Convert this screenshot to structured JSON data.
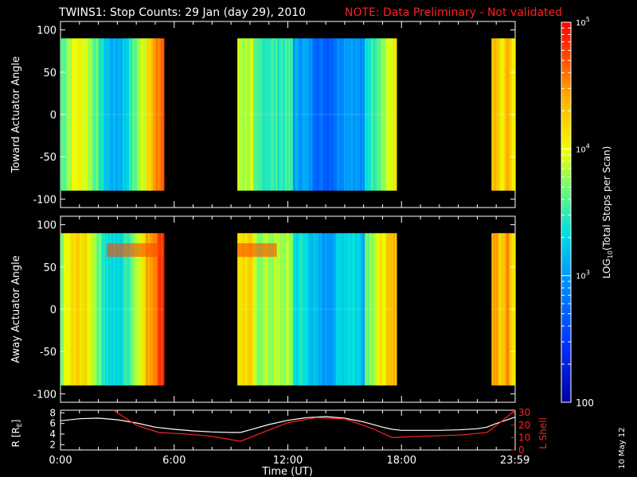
{
  "header": {
    "title": "TWINS1: Stop Counts: 29 Jan (day  29), 2010",
    "note": "NOTE: Data Preliminary - Not validated"
  },
  "stamp": "10 May 12",
  "colorbar": {
    "label": "LOG",
    "label_sub": "10",
    "label_rest": "(Total Stops per Scan)",
    "ticks": [
      {
        "value": 100000,
        "base": "10",
        "exp": "5"
      },
      {
        "value": 10000,
        "base": "10",
        "exp": "4"
      },
      {
        "value": 1000,
        "base": "10",
        "exp": "3"
      },
      {
        "value": 100,
        "base": "100",
        "exp": ""
      }
    ],
    "range": [
      100,
      100000
    ],
    "scale": "log"
  },
  "chart_data": [
    {
      "type": "heatmap",
      "ylabel": "Toward Actuator Angle",
      "ylim": [
        -110,
        110
      ],
      "yticks": [
        "100",
        "50",
        "0",
        "-50",
        "-100"
      ],
      "xlim": [
        0,
        24
      ],
      "angle_range": [
        -90,
        90
      ],
      "data_blocks": [
        {
          "start": "0:00",
          "end": "5:25",
          "level": "mixed: yellow-cyan, orange toward end"
        },
        {
          "start": "9:20",
          "end": "17:40",
          "level": "cyan-blue, yellow at edges"
        },
        {
          "start": "22:45",
          "end": "23:59",
          "level": "yellow-orange"
        }
      ]
    },
    {
      "type": "heatmap",
      "ylabel": "Away Actuator Angle",
      "ylim": [
        -110,
        110
      ],
      "yticks": [
        "100",
        "50",
        "0",
        "-50",
        "-100"
      ],
      "xlim": [
        0,
        24
      ],
      "angle_range": [
        -90,
        90
      ],
      "data_blocks": [
        {
          "start": "0:00",
          "end": "5:25",
          "level": "yellow-orange, red band near 70 deg"
        },
        {
          "start": "9:20",
          "end": "17:40",
          "level": "cyan-yellow, orange near 70 deg at start"
        },
        {
          "start": "22:45",
          "end": "23:59",
          "level": "orange"
        }
      ]
    },
    {
      "type": "line",
      "ylabel": "R [R",
      "ylabel_sub": "E",
      "ylabel_end": "]",
      "y2label": "L Shell",
      "xlabel": "Time (UT)",
      "xticks": [
        "0:00",
        "6:00",
        "12:00",
        "18:00",
        "23:59"
      ],
      "yticks": [
        "8",
        "6",
        "4",
        "2"
      ],
      "y2ticks": [
        "30",
        "20",
        "10",
        "0"
      ],
      "ylim": [
        1,
        8.5
      ],
      "y2lim": [
        0,
        32
      ],
      "series": [
        {
          "name": "R",
          "axis": "left",
          "x": [
            0,
            1,
            2,
            3,
            4,
            5,
            6,
            7,
            8,
            9,
            9.5,
            10,
            11,
            12,
            13,
            14,
            15,
            16,
            17,
            17.5,
            18,
            19,
            20,
            21,
            22,
            22.5,
            23,
            23.99
          ],
          "y": [
            6.5,
            6.9,
            7.0,
            6.7,
            6.1,
            5.3,
            4.9,
            4.6,
            4.4,
            4.3,
            4.3,
            4.8,
            5.8,
            6.6,
            7.1,
            7.3,
            7.0,
            6.3,
            5.3,
            4.9,
            4.7,
            4.7,
            4.7,
            4.8,
            5.0,
            5.3,
            6.0,
            7.2
          ]
        },
        {
          "name": "L Shell",
          "axis": "right",
          "x": [
            2.8,
            4.0,
            5.2,
            6.5,
            8.0,
            9.5,
            10.5,
            12.0,
            13.5,
            15.0,
            16.5,
            17.5,
            19.0,
            21.0,
            22.5,
            23.2,
            23.99
          ],
          "y": [
            32,
            20,
            14,
            13,
            11,
            7,
            13,
            22,
            26,
            25,
            17,
            10,
            11,
            12,
            14,
            22,
            32
          ]
        }
      ]
    }
  ]
}
